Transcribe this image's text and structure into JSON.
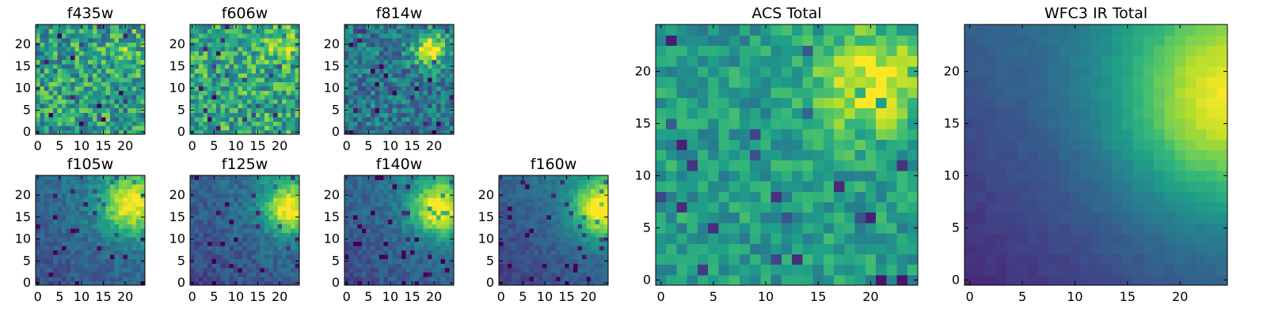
{
  "chart_data": [
    {
      "type": "heatmap",
      "title": "f435w",
      "grid_size": [
        25,
        25
      ],
      "xlim": [
        0,
        24
      ],
      "ylim": [
        0,
        24
      ],
      "xticks": [
        0,
        5,
        10,
        15,
        20
      ],
      "yticks": [
        0,
        5,
        10,
        15,
        20
      ],
      "colormap": "viridis",
      "structure": "noise"
    },
    {
      "type": "heatmap",
      "title": "f606w",
      "grid_size": [
        25,
        25
      ],
      "xlim": [
        0,
        24
      ],
      "ylim": [
        0,
        24
      ],
      "xticks": [
        0,
        5,
        10,
        15,
        20
      ],
      "yticks": [
        0,
        5,
        10,
        15,
        20
      ],
      "colormap": "viridis",
      "structure": "noise with faint bright region near upper right"
    },
    {
      "type": "heatmap",
      "title": "f814w",
      "grid_size": [
        25,
        25
      ],
      "xlim": [
        0,
        24
      ],
      "ylim": [
        0,
        24
      ],
      "xticks": [
        0,
        5,
        10,
        15,
        20
      ],
      "yticks": [
        0,
        5,
        10,
        15,
        20
      ],
      "colormap": "viridis",
      "structure": "bright blob near (19, 19) on noisy background"
    },
    {
      "type": "heatmap",
      "title": "f105w",
      "grid_size": [
        25,
        25
      ],
      "xlim": [
        0,
        24
      ],
      "ylim": [
        0,
        24
      ],
      "xticks": [
        0,
        5,
        10,
        15,
        20
      ],
      "yticks": [
        0,
        5,
        10,
        15,
        20
      ],
      "colormap": "viridis",
      "structure": "bright source at upper right, dark lower left"
    },
    {
      "type": "heatmap",
      "title": "f125w",
      "grid_size": [
        25,
        25
      ],
      "xlim": [
        0,
        24
      ],
      "ylim": [
        0,
        24
      ],
      "xticks": [
        0,
        5,
        10,
        15,
        20
      ],
      "yticks": [
        0,
        5,
        10,
        15,
        20
      ],
      "colormap": "viridis",
      "structure": "bright source at upper right, dark lower left"
    },
    {
      "type": "heatmap",
      "title": "f140w",
      "grid_size": [
        25,
        25
      ],
      "xlim": [
        0,
        24
      ],
      "ylim": [
        0,
        24
      ],
      "xticks": [
        0,
        5,
        10,
        15,
        20
      ],
      "yticks": [
        0,
        5,
        10,
        15,
        20
      ],
      "colormap": "viridis",
      "structure": "bright source at upper right, dark lower left"
    },
    {
      "type": "heatmap",
      "title": "f160w",
      "grid_size": [
        25,
        25
      ],
      "xlim": [
        0,
        24
      ],
      "ylim": [
        0,
        24
      ],
      "xticks": [
        0,
        5,
        10,
        15,
        20
      ],
      "yticks": [
        0,
        5,
        10,
        15,
        20
      ],
      "colormap": "viridis",
      "structure": "bright source at upper right, smooth gradient to dark lower left"
    },
    {
      "type": "heatmap",
      "title": "ACS Total",
      "grid_size": [
        25,
        25
      ],
      "xlim": [
        0,
        24
      ],
      "ylim": [
        0,
        24
      ],
      "xticks": [
        0,
        5,
        10,
        15,
        20
      ],
      "yticks": [
        0,
        5,
        10,
        15,
        20
      ],
      "colormap": "viridis",
      "structure": "bright blob near (20, 19), noisy green background"
    },
    {
      "type": "heatmap",
      "title": "WFC3 IR Total",
      "grid_size": [
        25,
        25
      ],
      "xlim": [
        0,
        24
      ],
      "ylim": [
        0,
        24
      ],
      "xticks": [
        0,
        5,
        10,
        15,
        20
      ],
      "yticks": [
        0,
        5,
        10,
        15,
        20
      ],
      "colormap": "viridis",
      "structure": "smooth gradient, brightest near (24, 17), darkest at lower left"
    }
  ]
}
